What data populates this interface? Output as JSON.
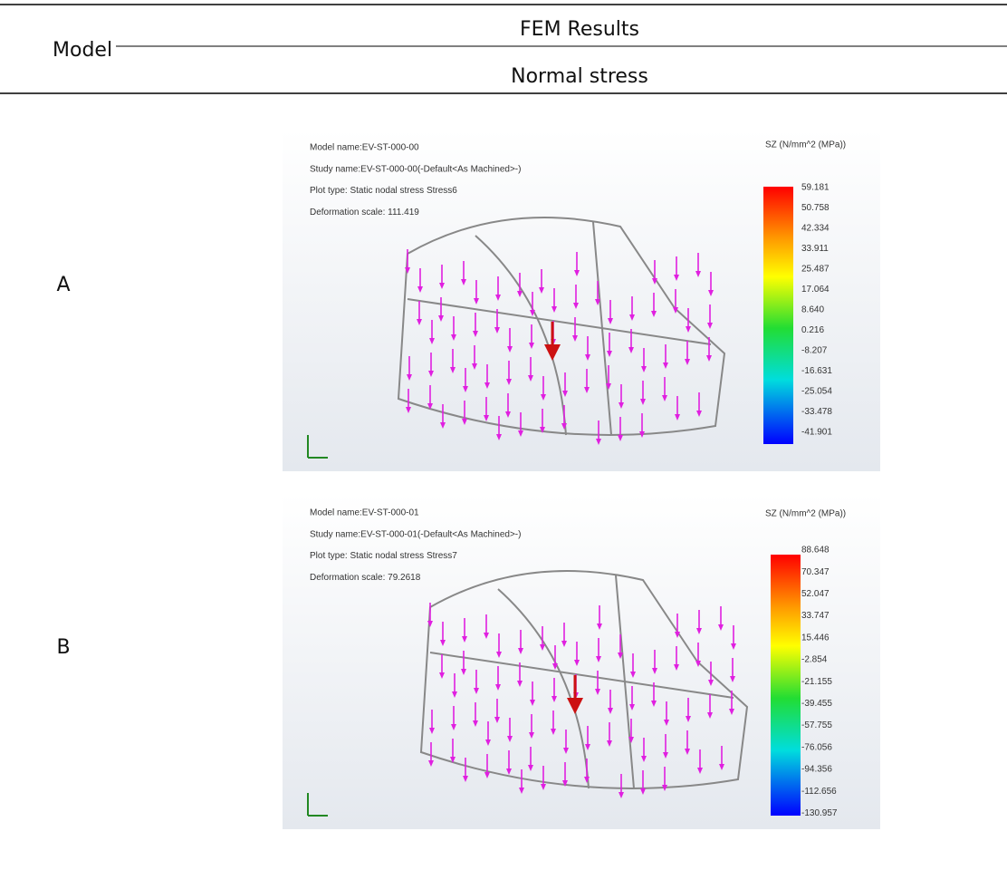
{
  "header": {
    "model": "Model",
    "fem": "FEM Results",
    "stress": "Normal stress"
  },
  "rows": [
    {
      "label": "A",
      "plot": {
        "lines": [
          "Model name:EV-ST-000-00",
          "Study name:EV-ST-000-00(-Default<As Machined>-)",
          "Plot type: Static nodal stress Stress6",
          "Deformation scale: 111.419"
        ],
        "legend_title": "SZ (N/mm^2 (MPa))",
        "legend_values": [
          "59.181",
          "50.758",
          "42.334",
          "33.911",
          "25.487",
          "17.064",
          "8.640",
          "0.216",
          "-8.207",
          "-16.631",
          "-25.054",
          "-33.478",
          "-41.901"
        ]
      }
    },
    {
      "label": "B",
      "plot": {
        "lines": [
          "Model name:EV-ST-000-01",
          "Study name:EV-ST-000-01(-Default<As Machined>-)",
          "Plot type: Static nodal stress Stress7",
          "Deformation scale: 79.2618"
        ],
        "legend_title": "SZ (N/mm^2 (MPa))",
        "legend_values": [
          "88.648",
          "70.347",
          "52.047",
          "33.747",
          "15.446",
          "-2.854",
          "-21.155",
          "-39.455",
          "-57.755",
          "-76.056",
          "-94.356",
          "-112.656",
          "-130.957"
        ]
      }
    }
  ]
}
